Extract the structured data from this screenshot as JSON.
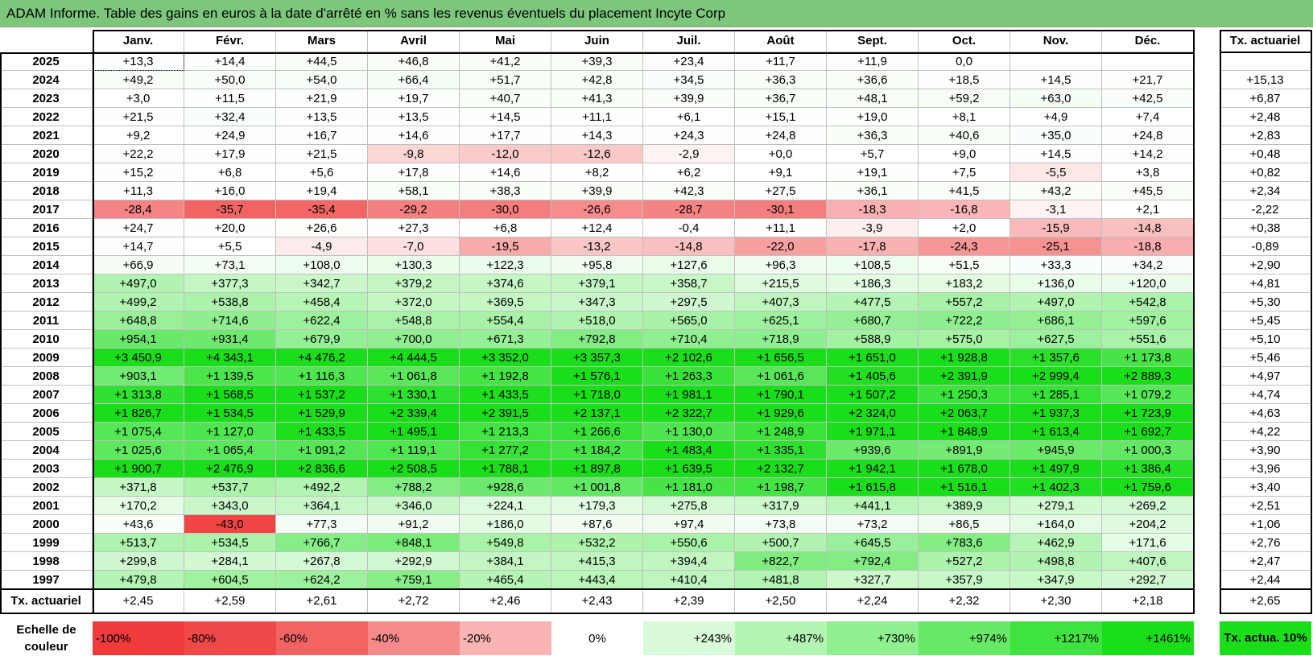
{
  "title": "ADAM Informe. Table des gains en euros à la date d'arrêté en % sans les revenus éventuels du placement Incyte Corp",
  "months": [
    "Janv.",
    "Févr.",
    "Mars",
    "Avril",
    "Mai",
    "Juin",
    "Juil.",
    "Août",
    "Sept.",
    "Oct.",
    "Nov.",
    "Déc."
  ],
  "rate_header": "Tx. actuariel",
  "rows": [
    {
      "year": "2025",
      "v": [
        "+13,3",
        "+14,4",
        "+44,5",
        "+46,8",
        "+41,2",
        "+39,3",
        "+23,4",
        "+11,7",
        "+11,9",
        "0,0",
        "",
        ""
      ],
      "rate": ""
    },
    {
      "year": "2024",
      "v": [
        "+49,2",
        "+50,0",
        "+54,0",
        "+66,4",
        "+51,7",
        "+42,8",
        "+34,5",
        "+36,3",
        "+36,6",
        "+18,5",
        "+14,5",
        "+21,7"
      ],
      "rate": "+15,13"
    },
    {
      "year": "2023",
      "v": [
        "+3,0",
        "+11,5",
        "+21,9",
        "+19,7",
        "+40,7",
        "+41,3",
        "+39,9",
        "+36,7",
        "+48,1",
        "+59,2",
        "+63,0",
        "+42,5"
      ],
      "rate": "+6,87"
    },
    {
      "year": "2022",
      "v": [
        "+21,5",
        "+32,4",
        "+13,5",
        "+13,5",
        "+14,5",
        "+11,1",
        "+6,1",
        "+15,1",
        "+19,0",
        "+8,1",
        "+4,9",
        "+7,4"
      ],
      "rate": "+2,48"
    },
    {
      "year": "2021",
      "v": [
        "+9,2",
        "+24,9",
        "+16,7",
        "+14,6",
        "+17,7",
        "+14,3",
        "+24,3",
        "+24,8",
        "+36,3",
        "+40,6",
        "+35,0",
        "+24,8"
      ],
      "rate": "+2,83"
    },
    {
      "year": "2020",
      "v": [
        "+22,2",
        "+17,9",
        "+21,5",
        "-9,8",
        "-12,0",
        "-12,6",
        "-2,9",
        "+0,0",
        "+5,7",
        "+9,0",
        "+14,5",
        "+14,2"
      ],
      "rate": "+0,48"
    },
    {
      "year": "2019",
      "v": [
        "+15,2",
        "+6,8",
        "+5,6",
        "+17,8",
        "+14,6",
        "+8,2",
        "+6,2",
        "+9,1",
        "+19,1",
        "+7,5",
        "-5,5",
        "+3,8"
      ],
      "rate": "+0,82"
    },
    {
      "year": "2018",
      "v": [
        "+11,3",
        "+16,0",
        "+19,4",
        "+58,1",
        "+38,3",
        "+39,9",
        "+42,3",
        "+27,5",
        "+36,1",
        "+41,5",
        "+43,2",
        "+45,5"
      ],
      "rate": "+2,34"
    },
    {
      "year": "2017",
      "v": [
        "-28,4",
        "-35,7",
        "-35,4",
        "-29,2",
        "-30,0",
        "-26,6",
        "-28,7",
        "-30,1",
        "-18,3",
        "-16,8",
        "-3,1",
        "+2,1"
      ],
      "rate": "-2,22"
    },
    {
      "year": "2016",
      "v": [
        "+24,7",
        "+20,0",
        "+26,6",
        "+27,3",
        "+6,8",
        "+12,4",
        "-0,4",
        "+11,1",
        "-3,9",
        "+2,0",
        "-15,9",
        "-14,8"
      ],
      "rate": "+0,38"
    },
    {
      "year": "2015",
      "v": [
        "+14,7",
        "+5,5",
        "-4,9",
        "-7,0",
        "-19,5",
        "-13,2",
        "-14,8",
        "-22,0",
        "-17,8",
        "-24,3",
        "-25,1",
        "-18,8"
      ],
      "rate": "-0,89"
    },
    {
      "year": "2014",
      "v": [
        "+66,9",
        "+73,1",
        "+108,0",
        "+130,3",
        "+122,3",
        "+95,8",
        "+127,6",
        "+96,3",
        "+108,5",
        "+51,5",
        "+33,3",
        "+34,2"
      ],
      "rate": "+2,90"
    },
    {
      "year": "2013",
      "v": [
        "+497,0",
        "+377,3",
        "+342,7",
        "+379,2",
        "+374,6",
        "+379,1",
        "+358,7",
        "+215,5",
        "+186,3",
        "+183,2",
        "+136,0",
        "+120,0"
      ],
      "rate": "+4,81"
    },
    {
      "year": "2012",
      "v": [
        "+499,2",
        "+538,8",
        "+458,4",
        "+372,0",
        "+369,5",
        "+347,3",
        "+297,5",
        "+407,3",
        "+477,5",
        "+557,2",
        "+497,0",
        "+542,8"
      ],
      "rate": "+5,30"
    },
    {
      "year": "2011",
      "v": [
        "+648,8",
        "+714,6",
        "+622,4",
        "+548,8",
        "+554,4",
        "+518,0",
        "+565,0",
        "+625,1",
        "+680,7",
        "+722,2",
        "+686,1",
        "+597,6"
      ],
      "rate": "+5,45"
    },
    {
      "year": "2010",
      "v": [
        "+954,1",
        "+931,4",
        "+679,9",
        "+700,0",
        "+671,3",
        "+792,8",
        "+710,4",
        "+718,9",
        "+588,9",
        "+575,0",
        "+627,5",
        "+551,6"
      ],
      "rate": "+5,10"
    },
    {
      "year": "2009",
      "v": [
        "+3 450,9",
        "+4 343,1",
        "+4 476,2",
        "+4 444,5",
        "+3 352,0",
        "+3 357,3",
        "+2 102,6",
        "+1 656,5",
        "+1 651,0",
        "+1 928,8",
        "+1 357,6",
        "+1 173,8"
      ],
      "rate": "+5,46"
    },
    {
      "year": "2008",
      "v": [
        "+903,1",
        "+1 139,5",
        "+1 116,3",
        "+1 061,8",
        "+1 192,8",
        "+1 576,1",
        "+1 263,3",
        "+1 061,6",
        "+1 405,6",
        "+2 391,9",
        "+2 999,4",
        "+2 889,3"
      ],
      "rate": "+4,97"
    },
    {
      "year": "2007",
      "v": [
        "+1 313,8",
        "+1 568,5",
        "+1 537,2",
        "+1 330,1",
        "+1 433,5",
        "+1 718,0",
        "+1 981,1",
        "+1 790,1",
        "+1 507,2",
        "+1 250,3",
        "+1 285,1",
        "+1 079,2"
      ],
      "rate": "+4,74"
    },
    {
      "year": "2006",
      "v": [
        "+1 826,7",
        "+1 534,5",
        "+1 529,9",
        "+2 339,4",
        "+2 391,5",
        "+2 137,1",
        "+2 322,7",
        "+1 929,6",
        "+2 324,0",
        "+2 063,7",
        "+1 937,3",
        "+1 723,9"
      ],
      "rate": "+4,63"
    },
    {
      "year": "2005",
      "v": [
        "+1 075,4",
        "+1 127,0",
        "+1 433,5",
        "+1 495,1",
        "+1 213,3",
        "+1 266,6",
        "+1 130,0",
        "+1 248,9",
        "+1 971,1",
        "+1 848,9",
        "+1 613,4",
        "+1 692,7"
      ],
      "rate": "+4,22"
    },
    {
      "year": "2004",
      "v": [
        "+1 025,6",
        "+1 065,4",
        "+1 091,2",
        "+1 119,1",
        "+1 277,2",
        "+1 184,2",
        "+1 483,4",
        "+1 335,1",
        "+939,6",
        "+891,9",
        "+945,9",
        "+1 000,3"
      ],
      "rate": "+3,90"
    },
    {
      "year": "2003",
      "v": [
        "+1 900,7",
        "+2 476,9",
        "+2 836,6",
        "+2 508,5",
        "+1 788,1",
        "+1 897,8",
        "+1 639,5",
        "+2 132,7",
        "+1 942,1",
        "+1 678,0",
        "+1 497,9",
        "+1 386,4"
      ],
      "rate": "+3,96"
    },
    {
      "year": "2002",
      "v": [
        "+371,8",
        "+537,7",
        "+492,2",
        "+788,2",
        "+928,6",
        "+1 001,8",
        "+1 181,0",
        "+1 198,7",
        "+1 615,8",
        "+1 516,1",
        "+1 402,3",
        "+1 759,6"
      ],
      "rate": "+3,40"
    },
    {
      "year": "2001",
      "v": [
        "+170,2",
        "+343,0",
        "+364,1",
        "+346,0",
        "+224,1",
        "+179,3",
        "+275,8",
        "+317,9",
        "+441,1",
        "+389,9",
        "+279,1",
        "+269,2"
      ],
      "rate": "+2,51"
    },
    {
      "year": "2000",
      "v": [
        "+43,6",
        "-43,0",
        "+77,3",
        "+91,2",
        "+186,0",
        "+87,6",
        "+97,4",
        "+73,8",
        "+73,2",
        "+86,5",
        "+164,0",
        "+204,2"
      ],
      "rate": "+1,06"
    },
    {
      "year": "1999",
      "v": [
        "+513,7",
        "+534,5",
        "+766,7",
        "+848,1",
        "+549,8",
        "+532,2",
        "+550,6",
        "+500,7",
        "+645,5",
        "+783,6",
        "+462,9",
        "+171,6"
      ],
      "rate": "+2,76"
    },
    {
      "year": "1998",
      "v": [
        "+299,8",
        "+284,1",
        "+267,8",
        "+292,9",
        "+384,1",
        "+415,3",
        "+394,4",
        "+822,7",
        "+792,4",
        "+527,2",
        "+498,8",
        "+407,6"
      ],
      "rate": "+2,47"
    },
    {
      "year": "1997",
      "v": [
        "+479,8",
        "+604,5",
        "+624,2",
        "+759,1",
        "+465,4",
        "+443,4",
        "+410,4",
        "+481,8",
        "+327,7",
        "+357,9",
        "+347,9",
        "+292,7"
      ],
      "rate": "+2,44"
    }
  ],
  "footer": {
    "label": "Tx. actuariel",
    "v": [
      "+2,45",
      "+2,59",
      "+2,61",
      "+2,72",
      "+2,46",
      "+2,43",
      "+2,39",
      "+2,50",
      "+2,24",
      "+2,32",
      "+2,30",
      "+2,18"
    ],
    "rate": "+2,65"
  },
  "legend": {
    "title": "Echelle de couleur",
    "items": [
      {
        "label": "-100%",
        "color": "#ef3b3b",
        "align": "left"
      },
      {
        "label": "-80%",
        "color": "#f04848",
        "align": "left"
      },
      {
        "label": "-60%",
        "color": "#f26464",
        "align": "left"
      },
      {
        "label": "-40%",
        "color": "#f58a8a",
        "align": "left"
      },
      {
        "label": "-20%",
        "color": "#fab4b4",
        "align": "left"
      },
      {
        "label": "0%",
        "color": "#ffffff",
        "align": "center"
      },
      {
        "label": "+243%",
        "color": "#d9fbd9",
        "align": "right"
      },
      {
        "label": "+487%",
        "color": "#b4f5b4",
        "align": "right"
      },
      {
        "label": "+730%",
        "color": "#8ef08e",
        "align": "right"
      },
      {
        "label": "+974%",
        "color": "#67ea67",
        "align": "right"
      },
      {
        "label": "+1217%",
        "color": "#3fe33f",
        "align": "right"
      },
      {
        "label": "+1461%",
        "color": "#1ade1a",
        "align": "right"
      }
    ],
    "box_label": "Tx. actua. 10%",
    "box_color": "#1ade1a"
  }
}
